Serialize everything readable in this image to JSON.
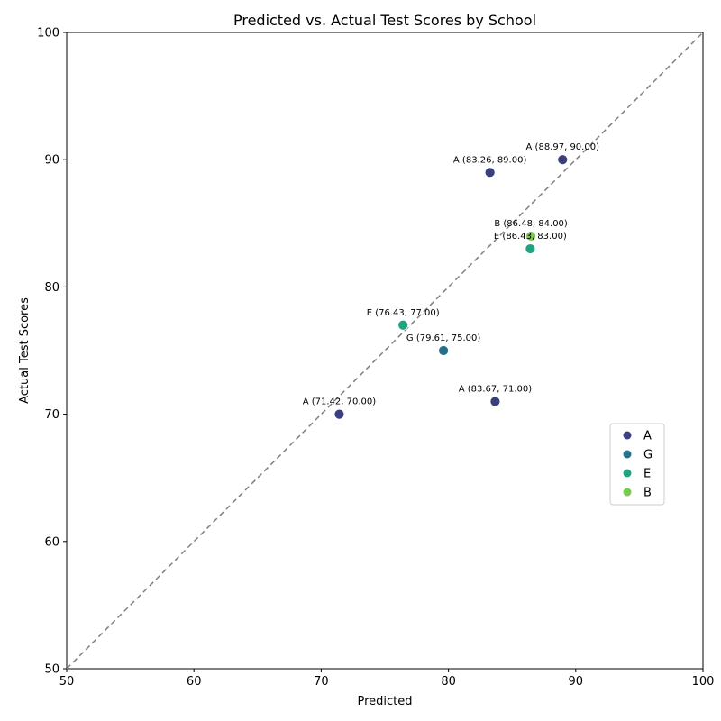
{
  "chart_data": {
    "type": "scatter",
    "title": "Predicted vs. Actual Test Scores by School",
    "xlabel": "Predicted",
    "ylabel": "Actual Test Scores",
    "xlim": [
      50,
      100
    ],
    "ylim": [
      50,
      100
    ],
    "xticks": [
      50,
      60,
      70,
      80,
      90,
      100
    ],
    "yticks": [
      50,
      60,
      70,
      80,
      90,
      100
    ],
    "grid": false,
    "reference_line": "y = x (dashed gray)",
    "legend_position": "center-right",
    "series": [
      {
        "name": "A",
        "color": "#3b3f80"
      },
      {
        "name": "G",
        "color": "#27708a"
      },
      {
        "name": "E",
        "color": "#22a37f"
      },
      {
        "name": "B",
        "color": "#79c94f"
      }
    ],
    "points": [
      {
        "school": "A",
        "x": 88.97,
        "y": 90.0,
        "label": "A (88.97, 90.00)"
      },
      {
        "school": "A",
        "x": 83.26,
        "y": 89.0,
        "label": "A (83.26, 89.00)"
      },
      {
        "school": "E",
        "x": 86.43,
        "y": 83.0,
        "label": "E (86.43, 83.00)"
      },
      {
        "school": "B",
        "x": 86.48,
        "y": 84.0,
        "label": "B (86.48, 84.00)"
      },
      {
        "school": "E",
        "x": 76.43,
        "y": 77.0,
        "label": "E (76.43, 77.00)"
      },
      {
        "school": "G",
        "x": 79.61,
        "y": 75.0,
        "label": "G (79.61, 75.00)"
      },
      {
        "school": "A",
        "x": 83.67,
        "y": 71.0,
        "label": "A (83.67, 71.00)"
      },
      {
        "school": "A",
        "x": 71.42,
        "y": 70.0,
        "label": "A (71.42, 70.00)"
      }
    ]
  }
}
